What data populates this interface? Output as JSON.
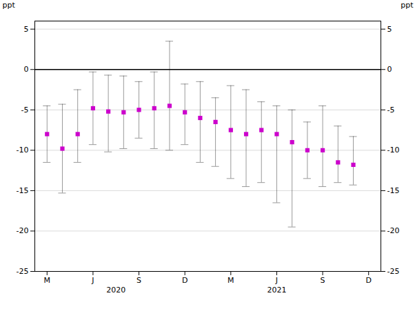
{
  "chart_data": {
    "type": "scatter",
    "ylabel": "ppt",
    "x": [
      0,
      1,
      2,
      3,
      4,
      5,
      6,
      7,
      8,
      9,
      10,
      11,
      12,
      13,
      14,
      15,
      16,
      17,
      18,
      19,
      20
    ],
    "values": [
      -8.0,
      -9.8,
      -8.0,
      -4.8,
      -5.2,
      -5.3,
      -5.0,
      -4.8,
      -4.5,
      -5.3,
      -6.0,
      -6.5,
      -7.5,
      -8.0,
      -7.5,
      -8.0,
      -9.0,
      -10.0,
      -10.0,
      -11.5,
      -11.8
    ],
    "error_upper": [
      3.5,
      5.5,
      5.5,
      4.5,
      4.5,
      4.5,
      3.5,
      4.5,
      8.0,
      3.5,
      4.5,
      3.0,
      5.5,
      5.5,
      3.5,
      3.5,
      4.0,
      3.5,
      5.5,
      4.5,
      3.5
    ],
    "error_lower": [
      3.5,
      5.5,
      3.5,
      4.5,
      5.0,
      4.5,
      3.5,
      5.0,
      5.5,
      4.0,
      5.5,
      5.5,
      6.0,
      6.5,
      6.5,
      8.5,
      10.5,
      3.5,
      4.5,
      2.5,
      2.5
    ],
    "color": "#CC00CC",
    "marker": "square",
    "xlim": [
      -0.8,
      21.8
    ],
    "xticks": [
      {
        "value": 0,
        "label": "M"
      },
      {
        "value": 3,
        "label": "J"
      },
      {
        "value": 6,
        "label": "S"
      },
      {
        "value": 9,
        "label": "D"
      },
      {
        "value": 12,
        "label": "M"
      },
      {
        "value": 15,
        "label": "J"
      },
      {
        "value": 18,
        "label": "S"
      },
      {
        "value": 21,
        "label": "D"
      }
    ],
    "ylim": [
      -25,
      6
    ],
    "yticks": [
      5,
      0,
      -5,
      -10,
      -15,
      -20,
      -25
    ],
    "y2lim": [
      -25,
      6
    ],
    "y2ticks": [
      5,
      0,
      -5,
      -10,
      -15,
      -20,
      -25
    ],
    "grid": true,
    "annotations": [
      {
        "text": "2020",
        "x": 4.5
      },
      {
        "text": "2021",
        "x": 15.0
      }
    ]
  }
}
